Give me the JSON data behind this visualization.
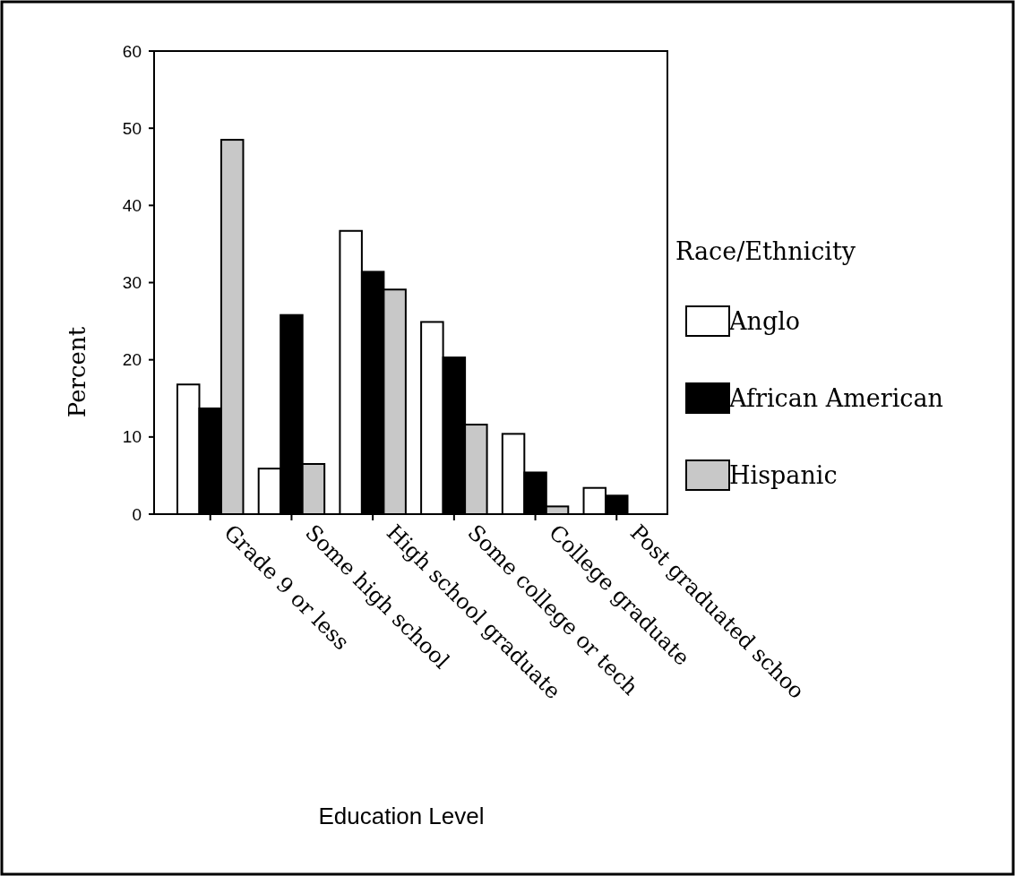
{
  "chart_data": {
    "type": "bar",
    "xlabel": "Education Level",
    "ylabel": "Percent",
    "legend_title": "Race/Ethnicity",
    "legend": "right",
    "categories": [
      "Grade 9 or less",
      "Some high school",
      "High school graduate",
      "Some college or tech",
      "College graduate",
      "Post graduated schoo"
    ],
    "series": [
      {
        "name": "Anglo",
        "color": "#ffffff",
        "values": [
          16.8,
          5.9,
          36.7,
          24.9,
          10.4,
          3.4
        ]
      },
      {
        "name": "African American",
        "color": "#000000",
        "values": [
          13.7,
          25.8,
          31.4,
          20.3,
          5.4,
          2.4
        ]
      },
      {
        "name": "Hispanic",
        "color": "#c8c8c8",
        "values": [
          48.5,
          6.5,
          29.1,
          11.6,
          1.0,
          0
        ]
      }
    ],
    "ylim": [
      0,
      60
    ],
    "yticks": [
      0,
      10,
      20,
      30,
      40,
      50,
      60
    ]
  }
}
